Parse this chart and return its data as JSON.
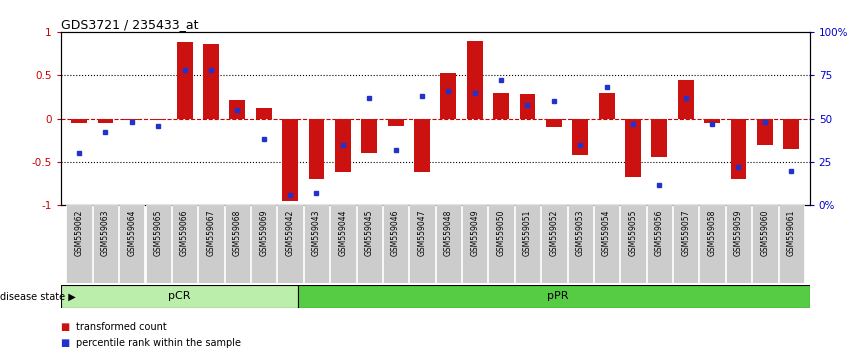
{
  "title": "GDS3721 / 235433_at",
  "samples": [
    "GSM559062",
    "GSM559063",
    "GSM559064",
    "GSM559065",
    "GSM559066",
    "GSM559067",
    "GSM559068",
    "GSM559069",
    "GSM559042",
    "GSM559043",
    "GSM559044",
    "GSM559045",
    "GSM559046",
    "GSM559047",
    "GSM559048",
    "GSM559049",
    "GSM559050",
    "GSM559051",
    "GSM559052",
    "GSM559053",
    "GSM559054",
    "GSM559055",
    "GSM559056",
    "GSM559057",
    "GSM559058",
    "GSM559059",
    "GSM559060",
    "GSM559061"
  ],
  "transformed_count": [
    -0.05,
    -0.05,
    -0.02,
    -0.02,
    0.88,
    0.86,
    0.22,
    0.12,
    -0.95,
    -0.7,
    -0.62,
    -0.4,
    -0.08,
    -0.62,
    0.52,
    0.9,
    0.3,
    0.28,
    -0.1,
    -0.42,
    0.3,
    -0.67,
    -0.44,
    0.45,
    -0.05,
    -0.7,
    -0.3,
    -0.35
  ],
  "percentile_rank": [
    0.3,
    0.42,
    0.48,
    0.46,
    0.78,
    0.78,
    0.55,
    0.38,
    0.06,
    0.07,
    0.35,
    0.62,
    0.32,
    0.63,
    0.66,
    0.65,
    0.72,
    0.58,
    0.6,
    0.35,
    0.68,
    0.47,
    0.12,
    0.62,
    0.47,
    0.22,
    0.48,
    0.2
  ],
  "pcr_count": 9,
  "bar_color": "#cc1111",
  "dot_color": "#2233cc",
  "pcr_color": "#bbeeaa",
  "ppr_color": "#55cc44",
  "bg_color": "#ffffff",
  "tick_bg_color": "#cccccc",
  "y_left_ticks": [
    -1,
    -0.5,
    0,
    0.5,
    1
  ],
  "y_right_ticks": [
    0,
    25,
    50,
    75,
    100
  ],
  "dotted_lines": [
    -0.5,
    0.5
  ],
  "zero_line_color": "#cc0000",
  "left_tick_color": "#cc0000",
  "right_tick_color": "#0000cc"
}
